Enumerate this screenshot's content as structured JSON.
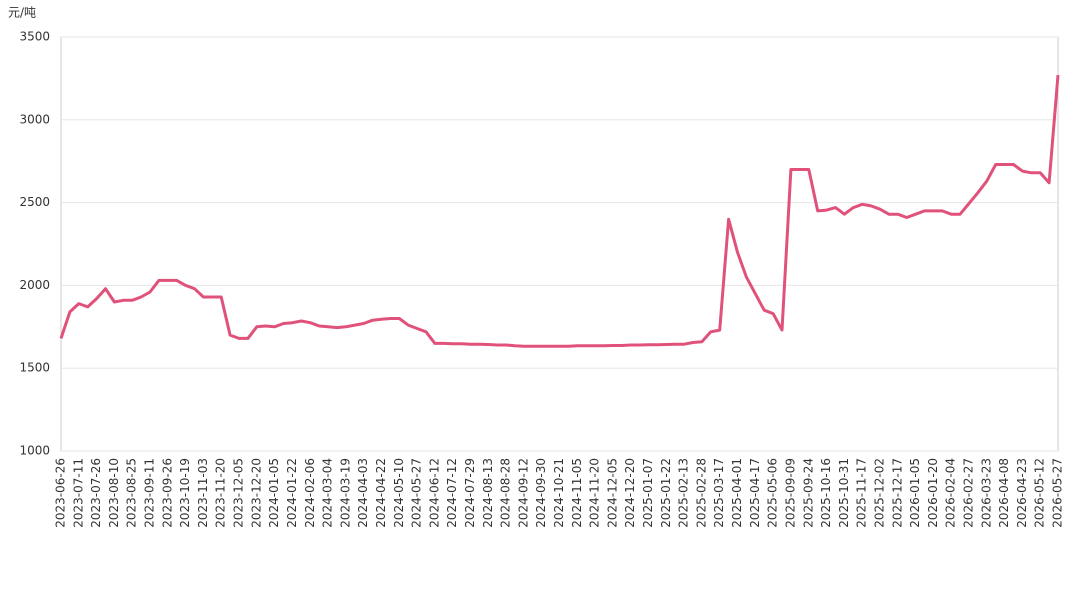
{
  "chart_data": {
    "type": "line",
    "y_label": "元/吨",
    "categories": [
      "2023-06-26",
      null,
      "2023-07-11",
      null,
      "2023-07-26",
      null,
      "2023-08-10",
      null,
      "2023-08-25",
      null,
      "2023-09-11",
      null,
      "2023-09-26",
      null,
      "2023-10-19",
      null,
      "2023-11-03",
      null,
      "2023-11-20",
      null,
      "2023-12-05",
      null,
      "2023-12-20",
      null,
      "2024-01-05",
      null,
      "2024-01-22",
      null,
      "2024-02-06",
      null,
      "2024-03-04",
      null,
      "2024-03-19",
      null,
      "2024-04-03",
      null,
      "2024-04-22",
      null,
      "2024-05-10",
      null,
      "2024-05-27",
      null,
      "2024-06-12",
      null,
      "2024-07-12",
      null,
      "2024-07-29",
      null,
      "2024-08-13",
      null,
      "2024-08-28",
      null,
      "2024-09-12",
      null,
      "2024-09-30",
      null,
      "2024-10-21",
      null,
      "2024-11-05",
      null,
      "2024-11-20",
      null,
      "2024-12-05",
      null,
      "2024-12-20",
      null,
      "2025-01-07",
      null,
      "2025-01-22",
      null,
      "2025-02-13",
      null,
      "2025-02-28",
      null,
      "2025-03-17",
      null,
      "2025-04-01",
      null,
      "2025-04-17",
      null,
      "2025-05-06",
      null,
      "2025-09-09",
      null,
      "2025-09-24",
      null,
      "2025-10-16",
      null,
      "2025-10-31",
      null,
      "2025-11-17",
      null,
      "2025-12-02",
      null,
      "2025-12-17",
      null,
      "2026-01-05",
      null,
      "2026-01-20",
      null,
      "2026-02-04",
      null,
      "2026-02-27",
      null,
      "2026-03-23",
      null,
      "2026-04-08",
      null,
      "2026-04-23",
      null,
      "2026-05-12",
      null,
      "2026-05-27"
    ],
    "values": [
      1680,
      1840,
      1890,
      1870,
      1920,
      1980,
      1900,
      1910,
      1910,
      1930,
      1960,
      2030,
      2030,
      2030,
      2000,
      1980,
      1930,
      1930,
      1930,
      1700,
      1680,
      1680,
      1750,
      1755,
      1750,
      1770,
      1775,
      1785,
      1775,
      1755,
      1750,
      1745,
      1750,
      1760,
      1770,
      1790,
      1795,
      1800,
      1800,
      1760,
      1740,
      1720,
      1650,
      1650,
      1648,
      1648,
      1645,
      1645,
      1643,
      1640,
      1640,
      1635,
      1632,
      1632,
      1633,
      1633,
      1633,
      1633,
      1635,
      1635,
      1635,
      1635,
      1637,
      1637,
      1640,
      1640,
      1642,
      1642,
      1643,
      1645,
      1645,
      1655,
      1660,
      1720,
      1730,
      2400,
      2200,
      2050,
      1950,
      1850,
      1830,
      1730,
      2700,
      2700,
      2700,
      2450,
      2455,
      2470,
      2430,
      2470,
      2490,
      2480,
      2460,
      2430,
      2430,
      2410,
      2430,
      2450,
      2450,
      2450,
      2430,
      2430,
      2495,
      2560,
      2630,
      2730,
      2730,
      2730,
      2690,
      2680,
      2680,
      2620,
      3270
    ],
    "color": "#e0527a",
    "ylim": [
      1000,
      3500
    ],
    "yticks": [
      1000,
      1500,
      2000,
      2500,
      3000,
      3500
    ],
    "grid": true
  }
}
